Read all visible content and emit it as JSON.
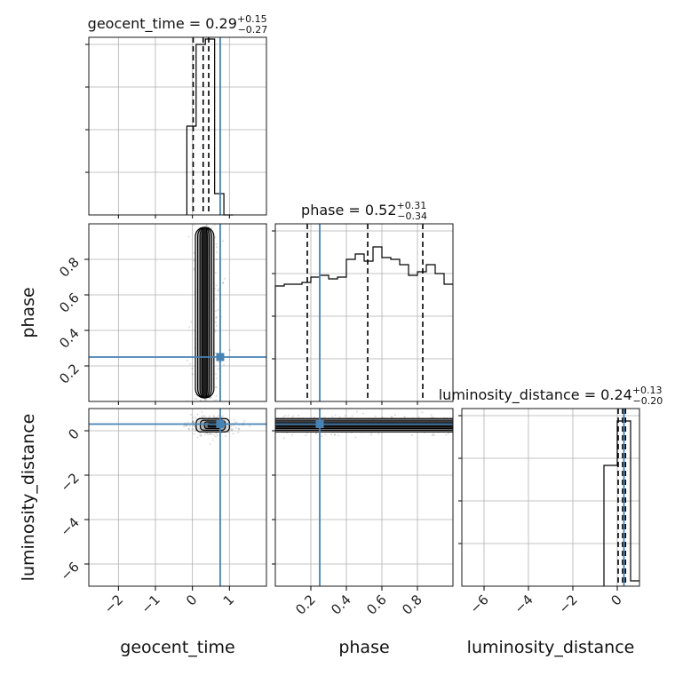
{
  "chart_data": {
    "type": "corner",
    "parameters": [
      "geocent_time",
      "phase",
      "luminosity_distance"
    ],
    "truths": {
      "geocent_time": 0.75,
      "phase": 0.25,
      "luminosity_distance": 0.3
    },
    "ranges": {
      "geocent_time": [
        -2.8,
        2.0
      ],
      "phase": [
        0.0,
        1.0
      ],
      "luminosity_distance": [
        -7.0,
        1.0
      ]
    },
    "ticks": {
      "geocent_time": {
        "values": [
          -2,
          -1,
          0,
          1
        ],
        "labels": [
          "−2",
          "−1",
          "0",
          "1"
        ]
      },
      "phase": {
        "values": [
          0.2,
          0.4,
          0.6,
          0.8
        ],
        "labels": [
          "0.2",
          "0.4",
          "0.6",
          "0.8"
        ]
      },
      "luminosity_distance": {
        "values": [
          -6,
          -4,
          -2,
          0
        ],
        "labels": [
          "−6",
          "−4",
          "−2",
          "0"
        ]
      }
    },
    "diag_titles": [
      {
        "label": "geocent_time = 0.29",
        "plus": "+0.15",
        "minus": "−0.27"
      },
      {
        "label": "phase = 0.52",
        "plus": "+0.31",
        "minus": "−0.34"
      },
      {
        "label": "luminosity_distance = 0.24",
        "plus": "+0.13",
        "minus": "−0.20"
      }
    ],
    "histograms": {
      "geocent_time": {
        "edges": [
          -0.15,
          0.1,
          0.35,
          0.6,
          0.85,
          1.1
        ],
        "counts": [
          0.5,
          0.96,
          0.99,
          0.12,
          0.0
        ],
        "quantiles": [
          0.02,
          0.29,
          0.44
        ]
      },
      "phase": {
        "edges": [
          0.0,
          0.05,
          0.1,
          0.15,
          0.2,
          0.25,
          0.3,
          0.35,
          0.4,
          0.45,
          0.5,
          0.55,
          0.6,
          0.65,
          0.7,
          0.75,
          0.8,
          0.85,
          0.9,
          0.95,
          1.0
        ],
        "counts": [
          0.65,
          0.66,
          0.66,
          0.67,
          0.7,
          0.71,
          0.69,
          0.7,
          0.8,
          0.83,
          0.79,
          0.87,
          0.81,
          0.8,
          0.77,
          0.71,
          0.73,
          0.77,
          0.72,
          0.66
        ],
        "quantiles": [
          0.18,
          0.52,
          0.83
        ]
      },
      "luminosity_distance": {
        "edges": [
          -0.6,
          0.0,
          0.6,
          1.2
        ],
        "counts": [
          0.68,
          0.93,
          0.03
        ],
        "quantiles": [
          0.04,
          0.24,
          0.37
        ]
      }
    },
    "posterior_density": {
      "phase_vs_geocent_time": {
        "x_center": 0.33,
        "x_width": 0.5,
        "y_range": [
          0.0,
          1.0
        ]
      },
      "ld_vs_geocent_time": {
        "x_center": 0.55,
        "x_width": 0.9,
        "y_center": 0.25,
        "y_width": 0.6
      },
      "ld_vs_phase": {
        "y_center": 0.25,
        "y_width": 0.6,
        "x_range": [
          0.0,
          1.0
        ]
      }
    }
  }
}
